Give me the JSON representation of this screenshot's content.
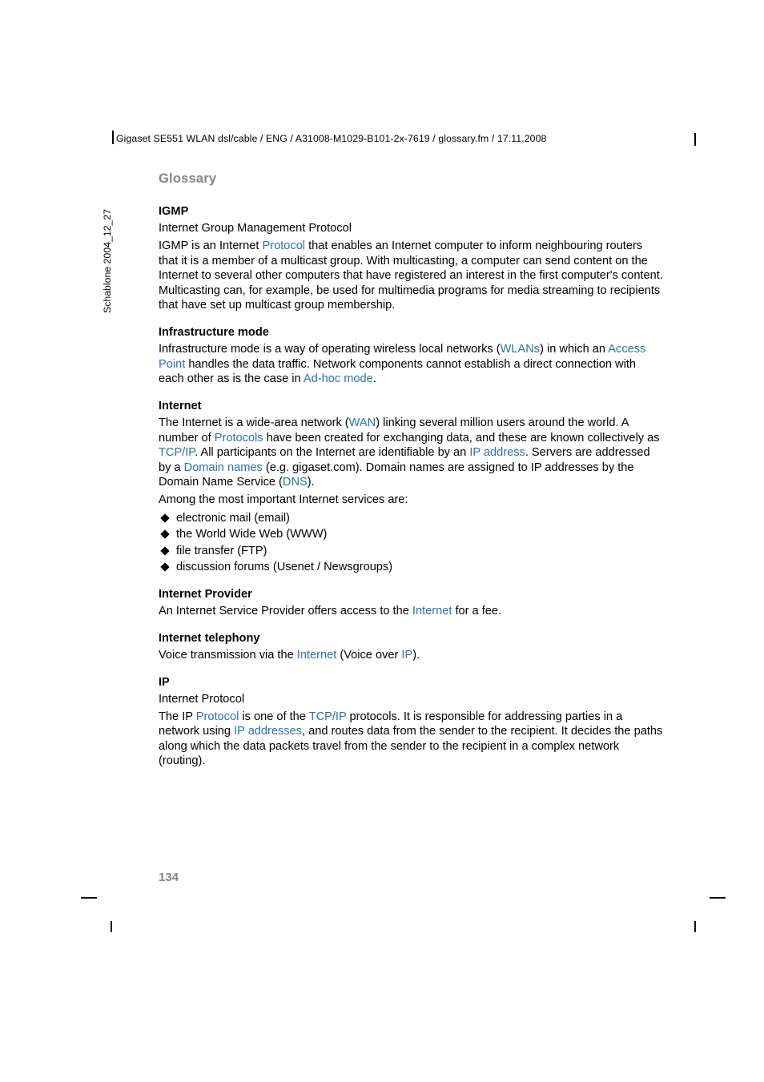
{
  "header": {
    "line": "Gigaset SE551 WLAN dsl/cable / ENG / A31008-M1029-B101-2x-7619 / glossary.fm / 17.11.2008"
  },
  "side_text": "Schablone 2004_12_27",
  "section_title": "Glossary",
  "page_number": "134",
  "entries": {
    "igmp": {
      "term": "IGMP",
      "expansion": "Internet Group Management Protocol",
      "para_before_link": "IGMP is an Internet ",
      "link1": "Protocol",
      "para_after_link": " that enables an Internet computer to inform neighbouring routers that it is a member of a multicast group. With multicasting, a computer can send content on the Internet to several other computers that have registered an interest in the first computer's content. Multicasting can, for example, be used for multimedia programs for media streaming to recipients that have set up multicast group membership."
    },
    "infra": {
      "term": "Infrastructure mode",
      "p1_a": "Infrastructure mode is a way of operating wireless local networks (",
      "link_wlan": "WLANs",
      "p1_b": ") in which an ",
      "link_ap": "Access Point",
      "p1_c": " handles the data traffic. Network components cannot establish a direct connection with each other as is the case in ",
      "link_adhoc": "Ad-hoc mode",
      "p1_d": "."
    },
    "internet": {
      "term": "Internet",
      "p1_a": "The Internet is a wide-area network (",
      "link_wan": "WAN",
      "p1_b": ") linking several million users around the world. A number of ",
      "link_protocols": "Protocols",
      "p1_c": " have been created for exchanging data, and these are known collectively as ",
      "link_tcpip": "TCP/IP",
      "p1_d": ". All participants on the Internet are identifiable by an ",
      "link_ipaddr": "IP address",
      "p1_e": ". Servers are addressed by a ",
      "link_domain": "Domain names",
      "p1_f": " (e.g. gigaset.com). Domain names are assigned to IP addresses by the Domain Name Service (",
      "link_dns": "DNS",
      "p1_g": ").",
      "p2": "Among the most important Internet services are:",
      "bullets": {
        "b1": "electronic mail (email)",
        "b2": "the World Wide Web (WWW)",
        "b3": "file transfer (FTP)",
        "b4": "discussion forums (Usenet / Newsgroups)"
      }
    },
    "provider": {
      "term": "Internet Provider",
      "p_a": "An Internet Service Provider offers access to the ",
      "link_internet": "Internet",
      "p_b": " for a fee."
    },
    "telephony": {
      "term": "Internet telephony",
      "p_a": "Voice transmission via the ",
      "link_internet": "Internet",
      "p_b": " (Voice over ",
      "link_ip": "IP",
      "p_c": ")."
    },
    "ip": {
      "term": "IP",
      "expansion": "Internet Protocol",
      "p_a": "The IP ",
      "link_protocol": "Protocol",
      "p_b": " is one of the ",
      "link_tcpip": "TCP/IP",
      "p_c": " protocols. It is responsible for addressing parties in a network using ",
      "link_ipaddr": "IP addresses",
      "p_d": ", and routes data from the sender to the recipient. It decides the paths along which the data packets travel from the sender to the recipient in a complex network (routing)."
    }
  }
}
